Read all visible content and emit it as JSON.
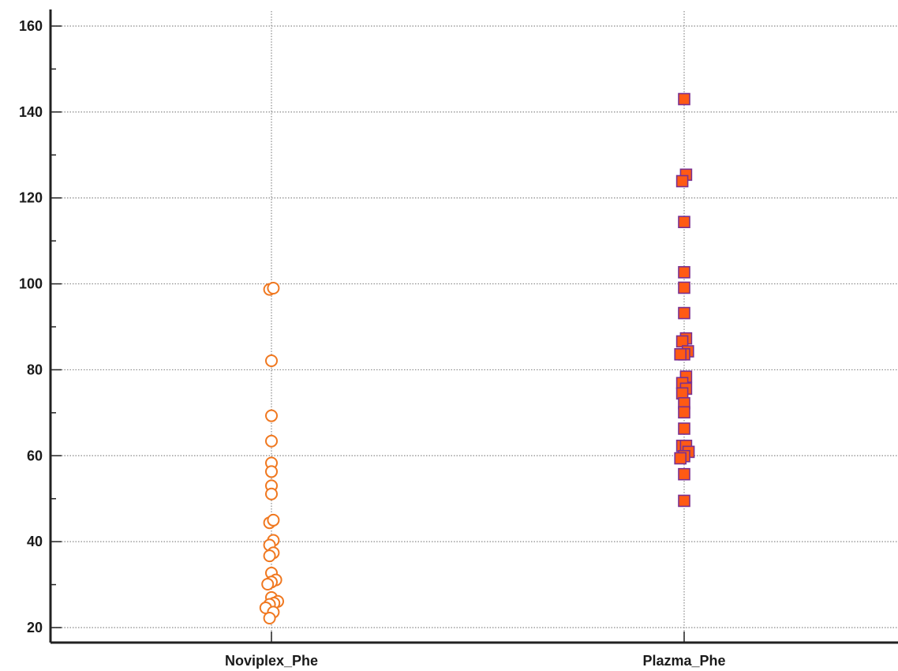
{
  "chart_data": {
    "type": "scatter",
    "title": "",
    "xlabel": "",
    "ylabel": "",
    "ylim": [
      17,
      163
    ],
    "yticks": [
      20,
      40,
      60,
      80,
      100,
      120,
      140,
      160
    ],
    "grid": true,
    "categories": [
      "Noviplex_Phe",
      "Plazma_Phe"
    ],
    "series": [
      {
        "category": "Noviplex_Phe",
        "marker": "circle-open",
        "color": "#f07820",
        "points": [
          {
            "jitter": -0.15,
            "y": 98.7
          },
          {
            "jitter": 0.15,
            "y": 99.0
          },
          {
            "jitter": 0.0,
            "y": 82.1
          },
          {
            "jitter": 0.0,
            "y": 69.3
          },
          {
            "jitter": 0.0,
            "y": 63.4
          },
          {
            "jitter": 0.0,
            "y": 58.3
          },
          {
            "jitter": 0.0,
            "y": 56.3
          },
          {
            "jitter": 0.0,
            "y": 53.0
          },
          {
            "jitter": 0.0,
            "y": 51.1
          },
          {
            "jitter": -0.15,
            "y": 44.4
          },
          {
            "jitter": 0.15,
            "y": 45.0
          },
          {
            "jitter": 0.15,
            "y": 40.3
          },
          {
            "jitter": -0.15,
            "y": 39.2
          },
          {
            "jitter": 0.15,
            "y": 37.4
          },
          {
            "jitter": -0.15,
            "y": 36.7
          },
          {
            "jitter": 0.0,
            "y": 32.7
          },
          {
            "jitter": 0.35,
            "y": 31.1
          },
          {
            "jitter": 0.0,
            "y": 30.6
          },
          {
            "jitter": -0.3,
            "y": 30.1
          },
          {
            "jitter": 0.0,
            "y": 27.0
          },
          {
            "jitter": 0.5,
            "y": 26.1
          },
          {
            "jitter": 0.2,
            "y": 25.7
          },
          {
            "jitter": -0.15,
            "y": 25.4
          },
          {
            "jitter": -0.45,
            "y": 24.6
          },
          {
            "jitter": 0.15,
            "y": 23.6
          },
          {
            "jitter": -0.15,
            "y": 22.2
          }
        ]
      },
      {
        "category": "Plazma_Phe",
        "marker": "square-filled",
        "color": "#ff5a14",
        "edge_color": "#7a3090",
        "points": [
          {
            "jitter": 0.0,
            "y": 143.0
          },
          {
            "jitter": 0.15,
            "y": 125.4
          },
          {
            "jitter": -0.15,
            "y": 123.9
          },
          {
            "jitter": 0.0,
            "y": 114.4
          },
          {
            "jitter": 0.0,
            "y": 102.7
          },
          {
            "jitter": 0.0,
            "y": 99.1
          },
          {
            "jitter": 0.0,
            "y": 93.2
          },
          {
            "jitter": 0.15,
            "y": 87.3
          },
          {
            "jitter": -0.15,
            "y": 86.6
          },
          {
            "jitter": 0.3,
            "y": 84.3
          },
          {
            "jitter": 0.0,
            "y": 83.6
          },
          {
            "jitter": -0.3,
            "y": 83.6
          },
          {
            "jitter": 0.15,
            "y": 78.4
          },
          {
            "jitter": -0.15,
            "y": 76.9
          },
          {
            "jitter": 0.15,
            "y": 75.6
          },
          {
            "jitter": -0.15,
            "y": 74.5
          },
          {
            "jitter": 0.0,
            "y": 72.2
          },
          {
            "jitter": 0.0,
            "y": 70.1
          },
          {
            "jitter": 0.0,
            "y": 66.3
          },
          {
            "jitter": -0.15,
            "y": 62.3
          },
          {
            "jitter": 0.15,
            "y": 62.3
          },
          {
            "jitter": 0.35,
            "y": 60.9
          },
          {
            "jitter": 0.0,
            "y": 59.9
          },
          {
            "jitter": -0.3,
            "y": 59.4
          },
          {
            "jitter": 0.0,
            "y": 55.7
          },
          {
            "jitter": 0.0,
            "y": 49.5
          }
        ]
      }
    ]
  }
}
